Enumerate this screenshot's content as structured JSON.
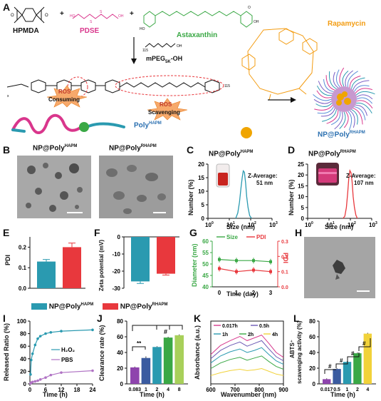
{
  "panels": {
    "A": {
      "letter": "A",
      "hpmda": "HPMDA",
      "pdse": "PDSE",
      "astaxanthin": "Astaxanthin",
      "mpeg": "mPEG",
      "mpeg_sub": "5K",
      "mpeg_suffix": "-OH",
      "repeat_n": "115",
      "rapamycin": "Rapamycin",
      "ros_consuming": [
        "ROS",
        "Consuming"
      ],
      "ros_scavenging": [
        "ROS",
        "Scavenging"
      ],
      "poly_label": "Poly",
      "poly_sup": "HAPM",
      "np_label": "NP@Poly",
      "np_sup": "RHAPM",
      "plus": "+"
    },
    "B": {
      "letter": "B",
      "left_title": "NP@Poly",
      "left_sup": "HAPM",
      "right_title": "NP@Poly",
      "right_sup": "RHAPM"
    },
    "C": {
      "letter": "C",
      "title": "NP@Poly",
      "title_sup": "HAPM",
      "ylabel": "Number (%)",
      "xlabel": "Size (nm)",
      "annot": [
        "Z-Average:",
        "51 nm"
      ],
      "yticks": [
        "0",
        "5",
        "10",
        "15",
        "20"
      ],
      "xticks": [
        "10",
        "10",
        "10",
        "10"
      ],
      "xtick_exp": [
        "0",
        "1",
        "2",
        "3"
      ]
    },
    "D": {
      "letter": "D",
      "title": "NP@Poly",
      "title_sup": "RHAPM",
      "ylabel": "Number (%)",
      "xlabel": "Size (nm)",
      "annot": [
        "Z-Average:",
        "107 nm"
      ],
      "yticks": [
        "0",
        "5",
        "10",
        "15",
        "20",
        "25"
      ],
      "xticks": [
        "10",
        "10",
        "10",
        "10"
      ],
      "xtick_exp": [
        "0",
        "1",
        "2",
        "3"
      ]
    },
    "E": {
      "letter": "E",
      "ylabel": "PDI",
      "yticks": [
        "0.0",
        "0.1",
        "0.2"
      ]
    },
    "F": {
      "letter": "F",
      "ylabel": "Zeta potential (mV)",
      "yticks": [
        "0",
        "-10",
        "-20",
        "-30"
      ]
    },
    "G": {
      "letter": "G",
      "ylabel_left": "Diameter (nm)",
      "ylabel_right": "PDI",
      "xlabel": "Time (day)",
      "legend": [
        "Size",
        "PDI"
      ],
      "yticks_left": [
        "40",
        "45",
        "50",
        "55",
        "60"
      ],
      "yticks_right": [
        "0.0",
        "0.1",
        "0.2",
        "0.3"
      ],
      "xticks": [
        "0",
        "1",
        "2",
        "3"
      ]
    },
    "H": {
      "letter": "H"
    },
    "legend_EF": {
      "item1": "NP@Poly",
      "item1_sup": "HAPM",
      "item2": "NP@Poly",
      "item2_sup": "RHAPM"
    },
    "I": {
      "letter": "I",
      "ylabel": "Released Ratio (%)",
      "xlabel": "Time (h)",
      "yticks": [
        "0",
        "20",
        "40",
        "60",
        "80",
        "100"
      ],
      "xticks": [
        "0",
        "6",
        "12",
        "18",
        "24"
      ],
      "legend": [
        "H₂O₂",
        "PBS"
      ]
    },
    "J": {
      "letter": "J",
      "ylabel": "Clearance rate (%)",
      "xlabel": "Time (h)",
      "yticks": [
        "0",
        "20",
        "40",
        "60",
        "80"
      ],
      "sig": [
        "**",
        "#"
      ]
    },
    "K": {
      "letter": "K",
      "ylabel": "Absorbance (a.u.)",
      "xlabel": "Wavenumber (nm)",
      "xticks": [
        "600",
        "700",
        "800",
        "900"
      ]
    },
    "L": {
      "letter": "L",
      "ylabel_1": "ABTS⁺",
      "ylabel_2": "scavenging activity (%)",
      "xlabel": "Time (h)",
      "yticks": [
        "0",
        "20",
        "40",
        "60",
        "80"
      ],
      "sig": [
        "#",
        "#",
        "#",
        "#"
      ]
    }
  },
  "colors": {
    "teal": "#2a9ab0",
    "red": "#e8383d",
    "green": "#3aa845",
    "purple": "#8e44ad",
    "orange": "#f39c12",
    "pink": "#d9368c"
  },
  "chart_data": [
    {
      "panel": "C",
      "type": "line",
      "x_scale": "log",
      "xlim": [
        1,
        1000
      ],
      "ylim": [
        0,
        20
      ],
      "x": [
        20,
        25,
        30,
        35,
        40,
        45,
        51,
        58,
        65,
        75,
        90,
        110
      ],
      "values": [
        0,
        2,
        6,
        11,
        15,
        17.5,
        17,
        13,
        8,
        4,
        1,
        0
      ]
    },
    {
      "panel": "D",
      "type": "line",
      "x_scale": "log",
      "xlim": [
        1,
        1000
      ],
      "ylim": [
        0,
        25
      ],
      "x": [
        45,
        55,
        65,
        75,
        85,
        95,
        107,
        120,
        135,
        155,
        180,
        210
      ],
      "values": [
        0,
        1,
        5,
        12,
        19,
        22,
        21,
        17,
        10,
        5,
        1.5,
        0
      ]
    },
    {
      "panel": "E",
      "type": "bar",
      "categories": [
        "NP@PolyHAPM",
        "NP@PolyRHAPM"
      ],
      "values": [
        0.13,
        0.2
      ],
      "errors": [
        0.01,
        0.02
      ],
      "ylim": [
        0,
        0.25
      ]
    },
    {
      "panel": "F",
      "type": "bar",
      "categories": [
        "NP@PolyHAPM",
        "NP@PolyRHAPM"
      ],
      "values": [
        -26,
        -21.5
      ],
      "errors": [
        1.2,
        0.8
      ],
      "ylim": [
        -30,
        0
      ]
    },
    {
      "panel": "G",
      "type": "line",
      "x": [
        0,
        1,
        2,
        3
      ],
      "series": [
        {
          "name": "Size",
          "axis": "left",
          "values": [
            52,
            51.5,
            51.5,
            51
          ],
          "ylim": [
            40,
            60
          ]
        },
        {
          "name": "PDI",
          "axis": "right",
          "values": [
            0.12,
            0.1,
            0.11,
            0.1
          ],
          "ylim": [
            0,
            0.3
          ]
        }
      ]
    },
    {
      "panel": "I",
      "type": "line",
      "xlim": [
        0,
        24
      ],
      "ylim": [
        0,
        100
      ],
      "series": [
        {
          "name": "H2O2",
          "x": [
            0.25,
            0.5,
            1,
            2,
            3,
            4,
            6,
            8,
            12,
            24
          ],
          "values": [
            15,
            38,
            48,
            62,
            72,
            76,
            80,
            82,
            84,
            86
          ]
        },
        {
          "name": "PBS",
          "x": [
            0.25,
            0.5,
            1,
            2,
            3,
            4,
            6,
            8,
            12,
            24
          ],
          "values": [
            1,
            2,
            3,
            4,
            5,
            7,
            10,
            14,
            18,
            21
          ]
        }
      ]
    },
    {
      "panel": "J",
      "type": "bar",
      "categories": [
        "0.083",
        "1",
        "2",
        "4",
        "8"
      ],
      "values": [
        21,
        33,
        47,
        59,
        62
      ],
      "errors": [
        1,
        2,
        1,
        1,
        1
      ],
      "ylim": [
        0,
        80
      ],
      "colors": [
        "#8e44ad",
        "#3a5ba0",
        "#2a9ab0",
        "#3aa845",
        "#a8d05a"
      ]
    },
    {
      "panel": "K",
      "type": "line",
      "xlim": [
        600,
        900
      ],
      "x": [
        600,
        640,
        680,
        720,
        750,
        780,
        810,
        840,
        870,
        900
      ],
      "series": [
        {
          "name": "0.017h",
          "values": [
            0.42,
            0.55,
            0.62,
            0.68,
            0.62,
            0.66,
            0.7,
            0.58,
            0.45,
            0.38
          ],
          "color": "#d63a8e"
        },
        {
          "name": "0.5h",
          "values": [
            0.36,
            0.48,
            0.55,
            0.6,
            0.54,
            0.58,
            0.62,
            0.5,
            0.39,
            0.33
          ],
          "color": "#6d5bb5"
        },
        {
          "name": "1h",
          "values": [
            0.3,
            0.4,
            0.46,
            0.5,
            0.45,
            0.48,
            0.52,
            0.42,
            0.33,
            0.28
          ],
          "color": "#2a9ab0"
        },
        {
          "name": "2h",
          "values": [
            0.22,
            0.3,
            0.35,
            0.38,
            0.34,
            0.37,
            0.4,
            0.32,
            0.25,
            0.21
          ],
          "color": "#3aa845"
        },
        {
          "name": "4h",
          "values": [
            0.12,
            0.16,
            0.19,
            0.21,
            0.19,
            0.2,
            0.22,
            0.18,
            0.14,
            0.12
          ],
          "color": "#f1d23a"
        }
      ]
    },
    {
      "panel": "L",
      "type": "bar",
      "categories": [
        "0.017",
        "0.5",
        "1",
        "2",
        "4"
      ],
      "values": [
        6,
        19,
        28,
        39,
        64
      ],
      "errors": [
        1,
        1,
        1,
        1,
        1
      ],
      "ylim": [
        0,
        80
      ],
      "colors": [
        "#8e44ad",
        "#3a5ba0",
        "#2a9ab0",
        "#3aa845",
        "#f1d23a"
      ]
    }
  ]
}
